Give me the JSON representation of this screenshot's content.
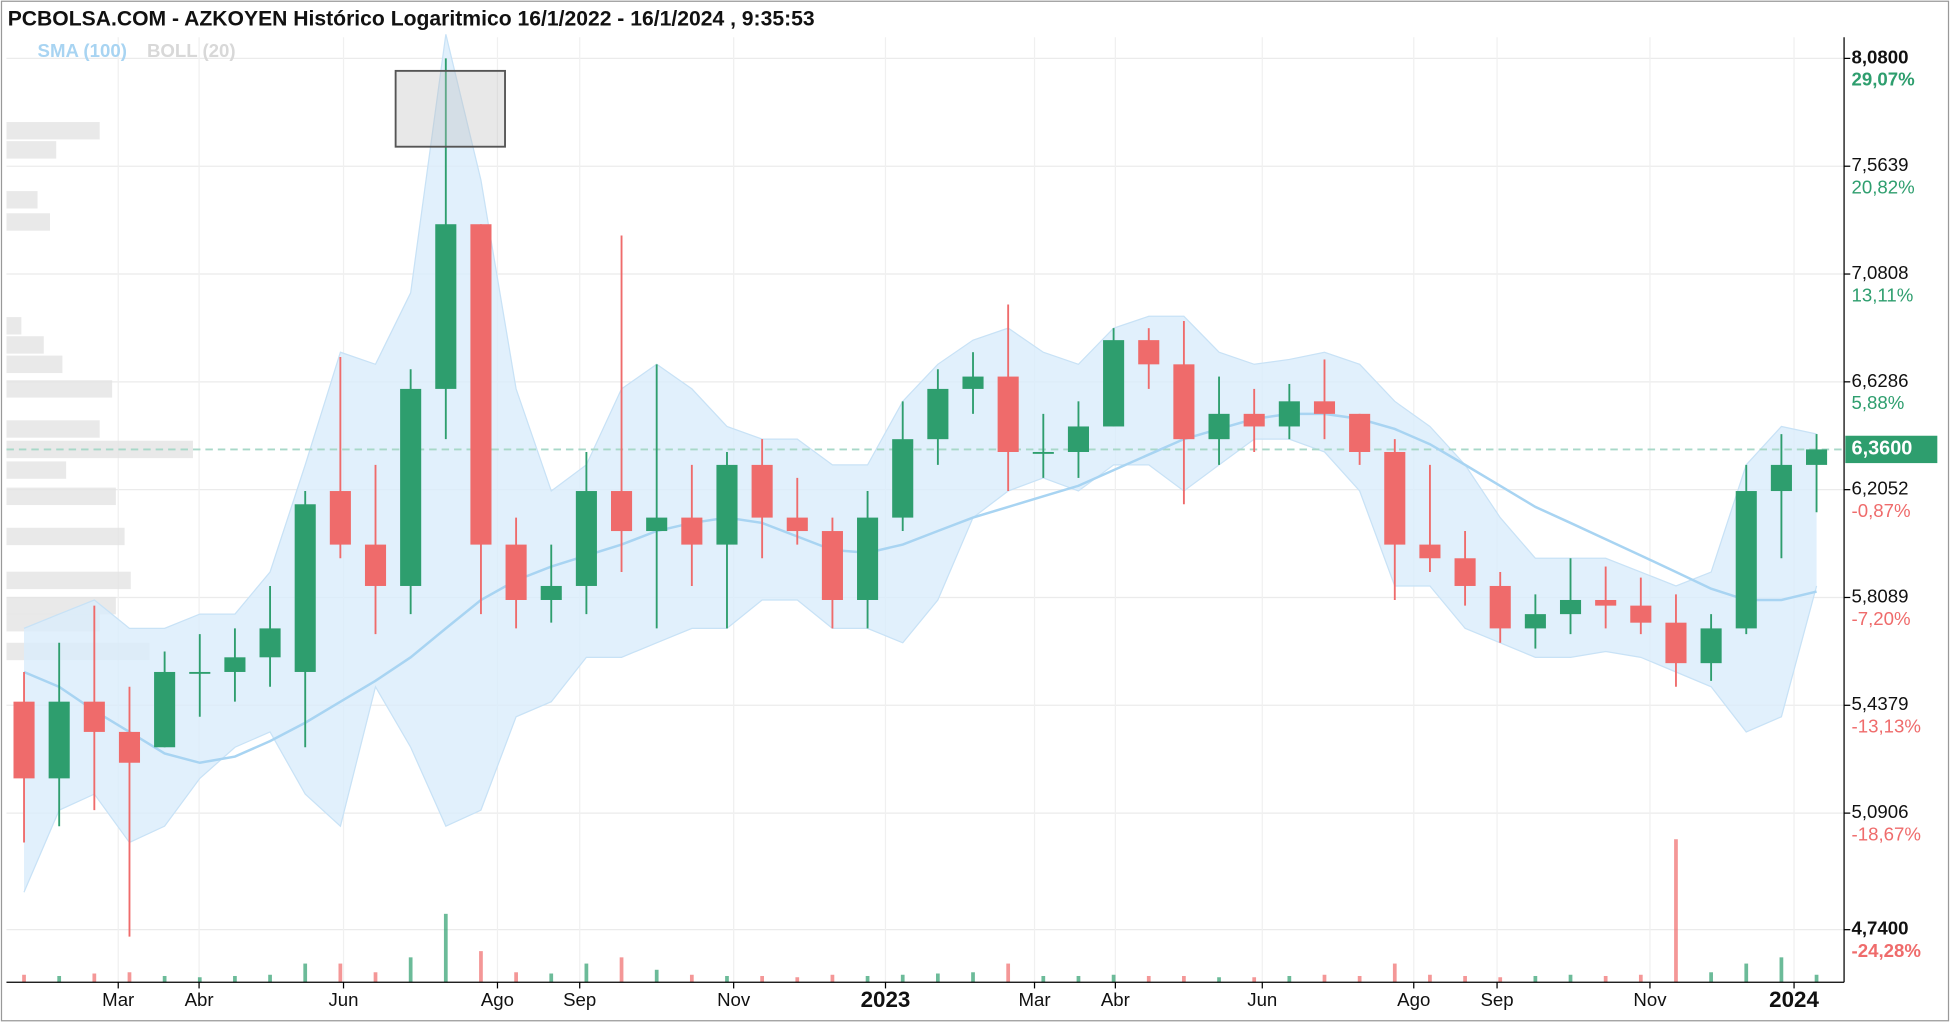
{
  "chart_data": {
    "type": "candlestick",
    "title": "PCBOLSA.COM - AZKOYEN Histórico Logaritmico 16/1/2022 - 16/1/2024 , 9:35:53",
    "log_scale": true,
    "grid": true,
    "ylim": [
      4.59,
      8.185
    ],
    "xlim": [
      -0.5,
      51.5
    ],
    "yticks": [
      {
        "value": 8.08,
        "label": "8,0800"
      },
      {
        "value": 7.5639,
        "label": "7,5639"
      },
      {
        "value": 7.0808,
        "label": "7,0808"
      },
      {
        "value": 6.6286,
        "label": "6,6286"
      },
      {
        "value": 6.2052,
        "label": "6,2052"
      },
      {
        "value": 5.8089,
        "label": "5,8089"
      },
      {
        "value": 5.4379,
        "label": "5,4379"
      },
      {
        "value": 5.0906,
        "label": "5,0906"
      },
      {
        "value": 4.74,
        "label": "4,7400"
      }
    ],
    "ytick_changes": [
      {
        "value": 29.07,
        "label": "29,07%"
      },
      {
        "value": 20.82,
        "label": "20,82%"
      },
      {
        "value": 13.11,
        "label": "13,11%"
      },
      {
        "value": 5.88,
        "label": "5,88%"
      },
      {
        "value": -0.87,
        "label": "-0,87%"
      },
      {
        "value": -7.2,
        "label": "-7,20%"
      },
      {
        "value": -13.13,
        "label": "-13,13%"
      },
      {
        "value": -18.67,
        "label": "-18,67%"
      },
      {
        "value": -24.28,
        "label": "-24,28%"
      }
    ],
    "xticks": [
      {
        "value": 2.68,
        "label": "Mar"
      },
      {
        "value": 4.98,
        "label": "Abr"
      },
      {
        "value": 9.09,
        "label": "Jun"
      },
      {
        "value": 13.47,
        "label": "Ago"
      },
      {
        "value": 15.81,
        "label": "Sep"
      },
      {
        "value": 20.19,
        "label": "Nov"
      },
      {
        "value": 24.51,
        "label": "2023"
      },
      {
        "value": 28.75,
        "label": "Mar"
      },
      {
        "value": 31.05,
        "label": "Abr"
      },
      {
        "value": 35.23,
        "label": "Jun"
      },
      {
        "value": 39.54,
        "label": "Ago"
      },
      {
        "value": 41.91,
        "label": "Sep"
      },
      {
        "value": 46.26,
        "label": "Nov"
      },
      {
        "value": 50.36,
        "label": "2024"
      }
    ],
    "last": {
      "value": 6.36,
      "label": "6,3600"
    },
    "up_color": "#2e9e6e",
    "down_color": "#ef6b6b",
    "candles": {
      "open": [
        5.45,
        5.2,
        5.45,
        5.35,
        5.3,
        5.55,
        5.55,
        5.6,
        5.55,
        6.2,
        6.0,
        5.85,
        6.6,
        7.3,
        6.0,
        5.8,
        5.85,
        6.2,
        6.05,
        6.1,
        6.0,
        6.3,
        6.1,
        6.05,
        5.8,
        6.1,
        6.4,
        6.6,
        6.65,
        6.35,
        6.35,
        6.45,
        6.8,
        6.7,
        6.4,
        6.5,
        6.45,
        6.55,
        6.5,
        6.35,
        6.0,
        5.95,
        5.85,
        5.7,
        5.75,
        5.8,
        5.78,
        5.72,
        5.58,
        5.7,
        6.2,
        6.3
      ],
      "high": [
        5.55,
        5.65,
        5.78,
        5.5,
        5.62,
        5.68,
        5.7,
        5.85,
        6.2,
        6.73,
        6.3,
        6.68,
        8.08,
        7.3,
        6.1,
        6.0,
        6.35,
        7.25,
        6.7,
        6.3,
        6.35,
        6.4,
        6.25,
        6.1,
        6.2,
        6.55,
        6.68,
        6.75,
        6.95,
        6.5,
        6.55,
        6.85,
        6.85,
        6.88,
        6.65,
        6.6,
        6.62,
        6.72,
        6.5,
        6.4,
        6.3,
        6.05,
        5.9,
        5.82,
        5.95,
        5.92,
        5.88,
        5.82,
        5.75,
        6.3,
        6.42,
        6.42
      ],
      "low": [
        5.0,
        5.05,
        5.1,
        4.72,
        5.3,
        5.4,
        5.45,
        5.5,
        5.3,
        5.95,
        5.68,
        5.75,
        6.4,
        5.75,
        5.7,
        5.72,
        5.75,
        5.9,
        5.7,
        5.85,
        5.7,
        5.95,
        6.0,
        5.7,
        5.7,
        6.05,
        6.3,
        6.5,
        6.2,
        6.25,
        6.25,
        6.45,
        6.6,
        6.15,
        6.3,
        6.35,
        6.4,
        6.4,
        6.3,
        5.8,
        5.9,
        5.78,
        5.65,
        5.63,
        5.68,
        5.7,
        5.68,
        5.5,
        5.52,
        5.68,
        5.95,
        6.12
      ],
      "close": [
        5.2,
        5.45,
        5.35,
        5.25,
        5.55,
        5.55,
        5.6,
        5.7,
        6.15,
        6.0,
        5.85,
        6.6,
        7.3,
        6.0,
        5.8,
        5.85,
        6.2,
        6.05,
        6.1,
        6.0,
        6.3,
        6.1,
        6.05,
        5.8,
        6.1,
        6.4,
        6.6,
        6.65,
        6.35,
        6.35,
        6.45,
        6.8,
        6.7,
        6.4,
        6.5,
        6.45,
        6.55,
        6.5,
        6.35,
        6.0,
        5.95,
        5.85,
        5.7,
        5.75,
        5.8,
        5.78,
        5.72,
        5.58,
        5.7,
        6.2,
        6.3,
        6.36
      ]
    },
    "volume_lim": [
      0,
      120
    ],
    "volume": [
      6,
      5,
      7,
      8,
      5,
      4,
      5,
      6,
      15,
      15,
      8,
      20,
      55,
      25,
      8,
      7,
      15,
      20,
      10,
      6,
      5,
      5,
      4,
      6,
      5,
      6,
      7,
      8,
      15,
      5,
      5,
      6,
      5,
      5,
      4,
      4,
      5,
      6,
      5,
      15,
      6,
      5,
      4,
      5,
      6,
      5,
      6,
      115,
      8,
      15,
      20,
      6
    ],
    "indicators": [
      {
        "name": "SMA (100)",
        "color": "#a8d4f2",
        "values": [
          5.55,
          5.5,
          5.42,
          5.35,
          5.28,
          5.25,
          5.27,
          5.32,
          5.38,
          5.45,
          5.52,
          5.6,
          5.7,
          5.8,
          5.87,
          5.92,
          5.96,
          6.0,
          6.05,
          6.08,
          6.1,
          6.08,
          6.03,
          5.98,
          5.97,
          6.0,
          6.05,
          6.1,
          6.14,
          6.18,
          6.22,
          6.28,
          6.34,
          6.4,
          6.44,
          6.48,
          6.5,
          6.5,
          6.48,
          6.44,
          6.38,
          6.3,
          6.22,
          6.14,
          6.08,
          6.02,
          5.96,
          5.9,
          5.84,
          5.8,
          5.8,
          5.83
        ]
      },
      {
        "name": "BOLL (20)",
        "color": "#d8d8d8",
        "band_color": "#d9ecfb",
        "upper": [
          5.7,
          5.75,
          5.8,
          5.7,
          5.7,
          5.75,
          5.75,
          5.9,
          6.3,
          6.75,
          6.7,
          7.0,
          8.2,
          7.5,
          6.6,
          6.2,
          6.3,
          6.6,
          6.7,
          6.6,
          6.45,
          6.4,
          6.4,
          6.3,
          6.3,
          6.55,
          6.7,
          6.8,
          6.85,
          6.75,
          6.7,
          6.85,
          6.9,
          6.9,
          6.75,
          6.7,
          6.72,
          6.75,
          6.7,
          6.55,
          6.45,
          6.3,
          6.1,
          5.95,
          5.95,
          5.95,
          5.9,
          5.85,
          5.9,
          6.3,
          6.45,
          6.42
        ],
        "lower": [
          4.85,
          5.1,
          5.15,
          5.0,
          5.05,
          5.2,
          5.3,
          5.35,
          5.15,
          5.05,
          5.5,
          5.3,
          5.05,
          5.1,
          5.4,
          5.45,
          5.6,
          5.6,
          5.65,
          5.7,
          5.7,
          5.8,
          5.8,
          5.7,
          5.7,
          5.65,
          5.8,
          6.1,
          6.2,
          6.25,
          6.2,
          6.3,
          6.3,
          6.2,
          6.3,
          6.4,
          6.4,
          6.35,
          6.2,
          5.85,
          5.85,
          5.7,
          5.65,
          5.6,
          5.6,
          5.62,
          5.6,
          5.55,
          5.5,
          5.35,
          5.4,
          5.85
        ]
      }
    ],
    "volume_profile_lim": [
      0,
      150
    ],
    "volume_profile": {
      "prices": [
        7.73,
        7.64,
        7.41,
        7.31,
        6.86,
        6.78,
        6.7,
        6.6,
        6.44,
        6.36,
        6.28,
        6.18,
        6.03,
        5.87,
        5.78,
        5.72,
        5.62
      ],
      "values": [
        75,
        40,
        25,
        35,
        12,
        30,
        45,
        85,
        75,
        150,
        48,
        88,
        95,
        100,
        88,
        75,
        115
      ]
    }
  }
}
